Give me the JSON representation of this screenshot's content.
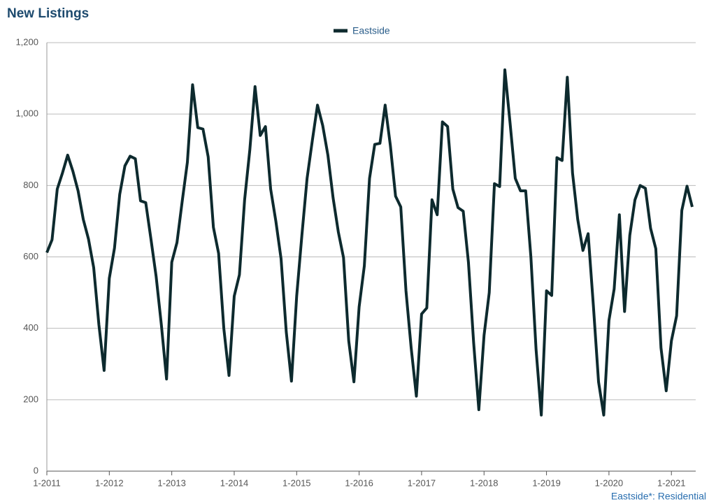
{
  "chart_data": {
    "type": "line",
    "title": "New Listings",
    "footer": "Eastside*: Residential",
    "categories": [
      "1-2011",
      null,
      null,
      null,
      null,
      null,
      null,
      null,
      null,
      null,
      null,
      null,
      "1-2012",
      null,
      null,
      null,
      null,
      null,
      null,
      null,
      null,
      null,
      null,
      null,
      "1-2013",
      null,
      null,
      null,
      null,
      null,
      null,
      null,
      null,
      null,
      null,
      null,
      "1-2014",
      null,
      null,
      null,
      null,
      null,
      null,
      null,
      null,
      null,
      null,
      null,
      "1-2015",
      null,
      null,
      null,
      null,
      null,
      null,
      null,
      null,
      null,
      null,
      null,
      "1-2016",
      null,
      null,
      null,
      null,
      null,
      null,
      null,
      null,
      null,
      null,
      null,
      "1-2017",
      null,
      null,
      null,
      null,
      null,
      null,
      null,
      null,
      null,
      null,
      null,
      "1-2018",
      null,
      null,
      null,
      null,
      null,
      null,
      null,
      null,
      null,
      null,
      null,
      "1-2019",
      null,
      null,
      null,
      null,
      null,
      null,
      null,
      null,
      null,
      null,
      null,
      "1-2020",
      null,
      null,
      null,
      null,
      null,
      null,
      null,
      null,
      null,
      null,
      null,
      "1-2021",
      null,
      null,
      null,
      null
    ],
    "series": [
      {
        "name": "Eastside",
        "color": "#0d2a2e",
        "values": [
          612,
          648,
          790,
          835,
          885,
          840,
          785,
          705,
          650,
          570,
          410,
          282,
          540,
          625,
          775,
          855,
          882,
          875,
          757,
          752,
          650,
          545,
          410,
          258,
          585,
          640,
          755,
          865,
          1082,
          962,
          958,
          880,
          683,
          610,
          400,
          268,
          490,
          550,
          760,
          900,
          1077,
          940,
          965,
          790,
          700,
          595,
          390,
          252,
          490,
          660,
          820,
          925,
          1025,
          968,
          885,
          765,
          670,
          598,
          365,
          250,
          460,
          575,
          820,
          915,
          918,
          1025,
          912,
          770,
          740,
          505,
          345,
          210,
          440,
          457,
          760,
          718,
          978,
          965,
          790,
          738,
          728,
          585,
          360,
          172,
          380,
          500,
          805,
          797,
          1124,
          975,
          820,
          785,
          785,
          600,
          340,
          157,
          505,
          492,
          878,
          870,
          1103,
          835,
          705,
          618,
          665,
          465,
          250,
          157,
          422,
          510,
          718,
          447,
          660,
          760,
          800,
          792,
          680,
          623,
          345,
          225,
          365,
          435,
          730,
          798,
          740
        ]
      }
    ],
    "ylim": [
      0,
      1200
    ],
    "yticks": [
      0,
      200,
      400,
      600,
      800,
      {
        "value": 1000,
        "label": "1,000"
      },
      {
        "value": 1200,
        "label": "1,200"
      }
    ],
    "grid": true
  }
}
